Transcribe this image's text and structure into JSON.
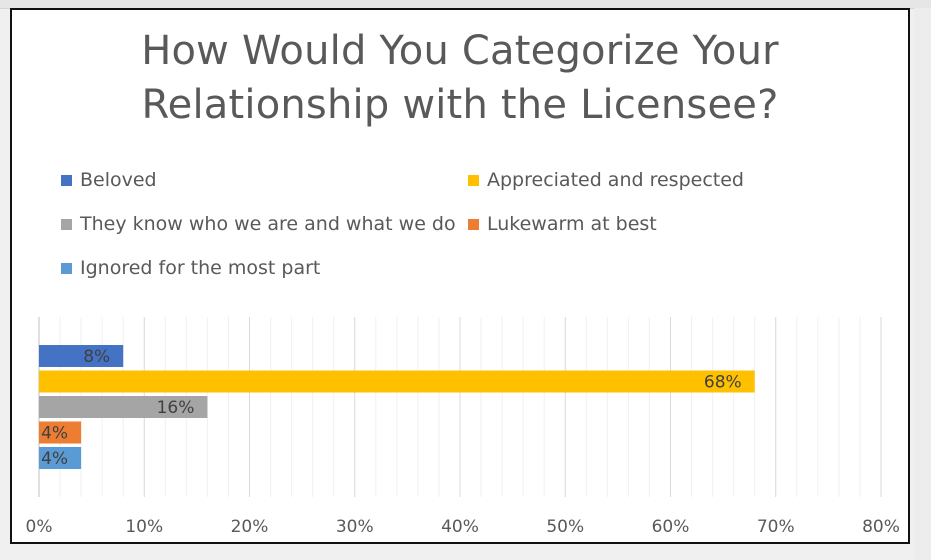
{
  "chart_data": {
    "type": "bar",
    "orientation": "horizontal",
    "title_lines": [
      "How Would You Categorize Your",
      "Relationship with the Licensee?"
    ],
    "categories": [
      "Beloved",
      "Appreciated and respected",
      "They know who we are and what we do",
      "Lukewarm at best",
      "Ignored for the most part"
    ],
    "values": [
      8,
      68,
      16,
      4,
      4
    ],
    "value_labels": [
      "8%",
      "68%",
      "16%",
      "4%",
      "4%"
    ],
    "colors": [
      "#4472c4",
      "#ffc000",
      "#a5a5a5",
      "#ed7d31",
      "#5b9bd5"
    ],
    "xlim": [
      0,
      80
    ],
    "x_ticks": [
      0,
      10,
      20,
      30,
      40,
      50,
      60,
      70,
      80
    ],
    "x_tick_labels": [
      "0%",
      "10%",
      "20%",
      "30%",
      "40%",
      "50%",
      "60%",
      "70%",
      "80%"
    ],
    "grid": true,
    "legend_position": "top",
    "xlabel": "",
    "ylabel": ""
  }
}
